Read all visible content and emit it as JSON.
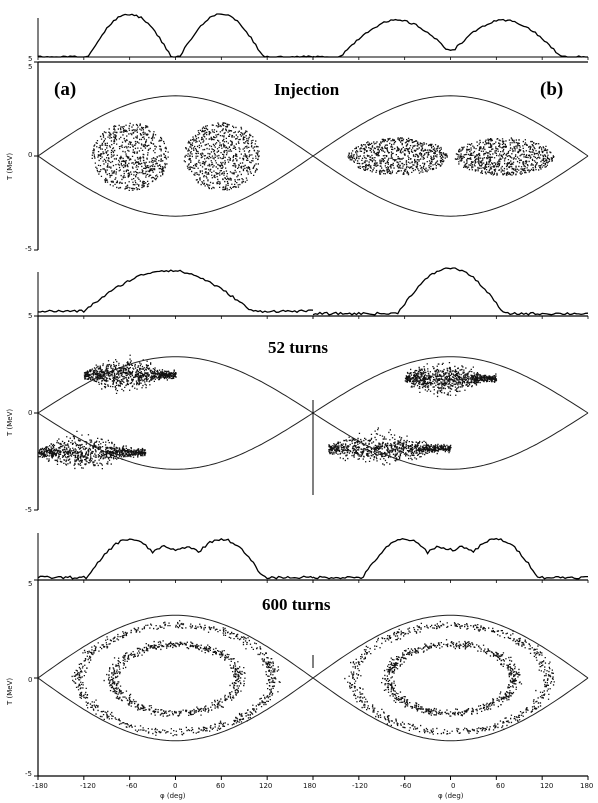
{
  "figure": {
    "panel_labels": [
      "(a)",
      "(b)"
    ],
    "stage_titles": [
      "Injection",
      "52 turns",
      "600 turns"
    ],
    "y_axis_label": "T (MeV)",
    "x_axis_label": "φ (deg)",
    "y_ticks": [
      "5",
      "0",
      "-5"
    ],
    "x_ticks": [
      "-180",
      "-120",
      "-60",
      "0",
      "60",
      "120",
      "180"
    ],
    "profile_axis_tick": "5"
  },
  "chart_data": [
    {
      "type": "scatter",
      "title": "Injection",
      "panels": [
        "(a)",
        "(b)"
      ],
      "xlabel": "φ (deg)",
      "ylabel": "T (MeV)",
      "xlim": [
        -180,
        180
      ],
      "ylim": [
        -5,
        5
      ],
      "x_ticks": [
        -180,
        -120,
        -60,
        0,
        60,
        120,
        180
      ],
      "y_ticks": [
        5,
        0,
        -5
      ],
      "separatrix_half_height": 3.2,
      "panel_a_bunches": [
        {
          "center_phi": -60,
          "half_width_deg": 50,
          "half_height": 1.8
        },
        {
          "center_phi": 60,
          "half_width_deg": 50,
          "half_height": 1.8
        }
      ],
      "panel_b_bunches": [
        {
          "center_phi": -70,
          "half_width_deg": 65,
          "half_height": 1.0
        },
        {
          "center_phi": 70,
          "half_width_deg": 65,
          "half_height": 1.0
        }
      ],
      "profile": "two bumps (a); two bumps (b)"
    },
    {
      "type": "scatter",
      "title": "52 turns",
      "panels": [
        "(a)",
        "(b)"
      ],
      "xlabel": "φ (deg)",
      "ylabel": "T (MeV)",
      "xlim": [
        -180,
        180
      ],
      "ylim": [
        -5,
        5
      ],
      "separatrix_half_height": 2.9,
      "panel_a_arms": [
        {
          "phi_start": -120,
          "phi_end": 0,
          "T_center": 2.0
        },
        {
          "phi_start": -180,
          "phi_end": -40,
          "T_center": -2.0
        }
      ],
      "panel_b_arms": [
        {
          "phi_start": -60,
          "phi_end": 60,
          "T_center": 1.8
        },
        {
          "phi_start": -160,
          "phi_end": 0,
          "T_center": -1.8
        }
      ],
      "profile": "single central bump"
    },
    {
      "type": "scatter",
      "title": "600 turns",
      "panels": [
        "(a)",
        "(b)"
      ],
      "xlabel": "φ (deg)",
      "ylabel": "T (MeV)",
      "xlim": [
        -180,
        180
      ],
      "ylim": [
        -5,
        5
      ],
      "separatrix_half_height": 3.2,
      "ring_radii_fraction": [
        0.55,
        0.85
      ],
      "profile": "two peaks near ±60 with flat centre"
    }
  ]
}
